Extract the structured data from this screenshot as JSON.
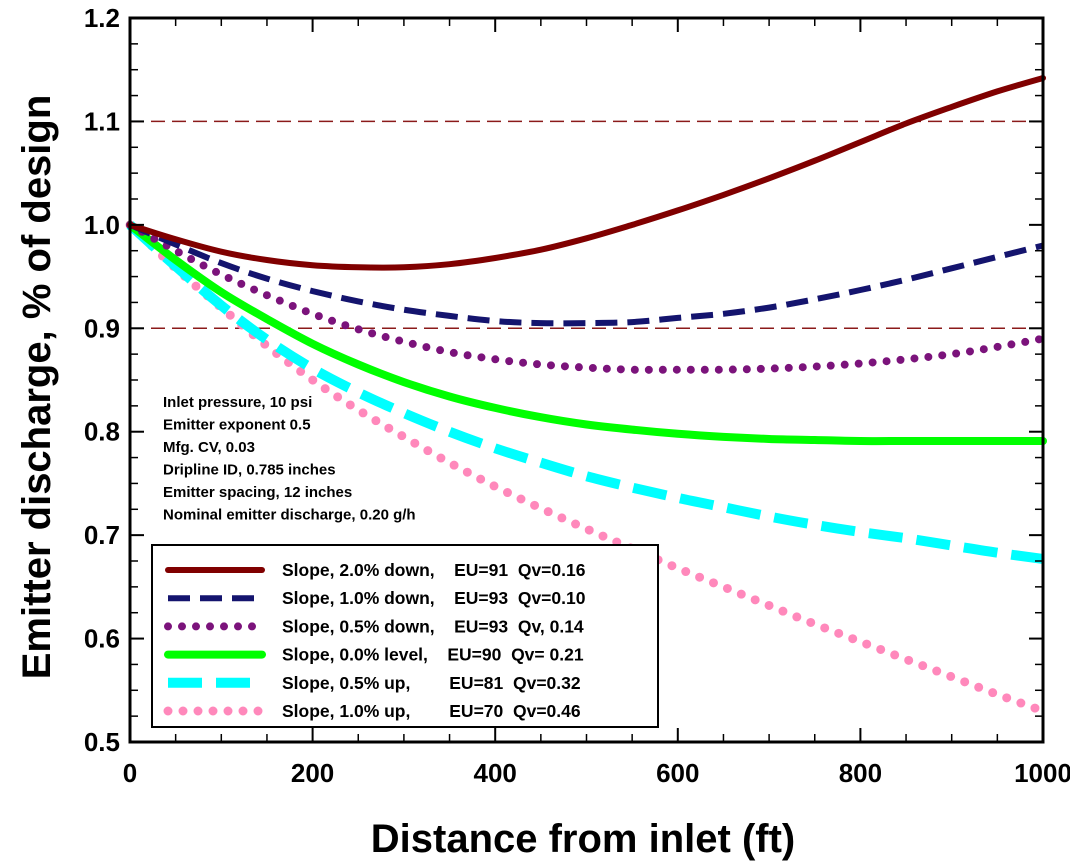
{
  "chart_data": {
    "type": "line",
    "xlabel": "Distance from inlet (ft)",
    "ylabel": "Emitter discharge, % of design",
    "xlim": [
      0,
      1000
    ],
    "ylim": [
      0.5,
      1.2
    ],
    "x_ticks": [
      0,
      200,
      400,
      600,
      800,
      1000
    ],
    "x_tick_labels": [
      "0",
      "200",
      "400",
      "600",
      "800",
      "1000"
    ],
    "y_ticks": [
      0.5,
      0.6,
      0.7,
      0.8,
      0.9,
      1.0,
      1.1,
      1.2
    ],
    "y_tick_labels": [
      "0.5",
      "0.6",
      "0.7",
      "0.8",
      "0.9",
      "1.0",
      "1.1",
      "1.2"
    ],
    "grid": false,
    "reference_lines": [
      {
        "y": 1.1,
        "color": "#8b1a1a",
        "style": "dashed"
      },
      {
        "y": 0.9,
        "color": "#8b1a1a",
        "style": "dashed"
      }
    ],
    "annotations": [
      "Inlet pressure, 10 psi",
      "Emitter exponent 0.5",
      "Mfg. CV, 0.03",
      "Dripline ID, 0.785 inches",
      "Emitter spacing, 12 inches",
      "Nominal emitter discharge, 0.20 g/h"
    ],
    "legend_placement": "bottom-left",
    "x": [
      0,
      50,
      100,
      150,
      200,
      250,
      300,
      350,
      400,
      450,
      500,
      550,
      600,
      650,
      700,
      750,
      800,
      850,
      900,
      950,
      1000
    ],
    "series": [
      {
        "name": "Slope, 2.0% down,    EU=91  Qv=0.16",
        "color": "#800000",
        "style": "solid",
        "values": [
          1.0,
          0.986,
          0.974,
          0.966,
          0.961,
          0.959,
          0.959,
          0.962,
          0.968,
          0.976,
          0.987,
          1.0,
          1.014,
          1.029,
          1.045,
          1.062,
          1.08,
          1.098,
          1.114,
          1.129,
          1.142
        ]
      },
      {
        "name": "Slope, 1.0% down,    EU=93  Qv=0.10",
        "color": "#14146e",
        "style": "dashed",
        "values": [
          1.0,
          0.981,
          0.963,
          0.948,
          0.936,
          0.926,
          0.918,
          0.912,
          0.907,
          0.905,
          0.905,
          0.906,
          0.91,
          0.914,
          0.92,
          0.928,
          0.937,
          0.947,
          0.958,
          0.969,
          0.98
        ]
      },
      {
        "name": "Slope, 0.5% down,    EU=93  Qv, 0.14",
        "color": "#7b137b",
        "style": "dotted",
        "values": [
          1.0,
          0.975,
          0.952,
          0.932,
          0.914,
          0.899,
          0.887,
          0.877,
          0.87,
          0.865,
          0.862,
          0.86,
          0.86,
          0.86,
          0.861,
          0.863,
          0.866,
          0.87,
          0.875,
          0.882,
          0.89
        ]
      },
      {
        "name": "Slope, 0.0% level,    EU=90  Qv= 0.21",
        "color": "#00ff00",
        "style": "solid",
        "values": [
          1.0,
          0.966,
          0.935,
          0.909,
          0.885,
          0.865,
          0.848,
          0.834,
          0.823,
          0.814,
          0.807,
          0.802,
          0.798,
          0.795,
          0.793,
          0.792,
          0.791,
          0.791,
          0.791,
          0.791,
          0.791
        ]
      },
      {
        "name": "Slope, 0.5% up,        EU=81  Qv=0.32",
        "color": "#00ffff",
        "style": "dashed",
        "values": [
          1.0,
          0.96,
          0.922,
          0.889,
          0.861,
          0.838,
          0.818,
          0.8,
          0.784,
          0.77,
          0.757,
          0.746,
          0.736,
          0.727,
          0.718,
          0.71,
          0.703,
          0.697,
          0.69,
          0.683,
          0.677
        ]
      },
      {
        "name": "Slope, 1.0% up,        EU=70  Qv=0.46",
        "color": "#ff88bb",
        "style": "dotted",
        "values": [
          1.0,
          0.958,
          0.92,
          0.883,
          0.85,
          0.821,
          0.795,
          0.77,
          0.747,
          0.726,
          0.706,
          0.687,
          0.668,
          0.65,
          0.632,
          0.614,
          0.597,
          0.58,
          0.563,
          0.546,
          0.53
        ]
      }
    ]
  }
}
